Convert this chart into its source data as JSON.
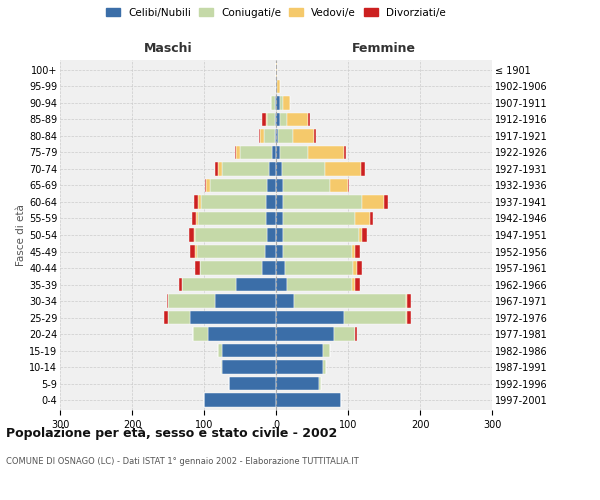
{
  "age_groups": [
    "0-4",
    "5-9",
    "10-14",
    "15-19",
    "20-24",
    "25-29",
    "30-34",
    "35-39",
    "40-44",
    "45-49",
    "50-54",
    "55-59",
    "60-64",
    "65-69",
    "70-74",
    "75-79",
    "80-84",
    "85-89",
    "90-94",
    "95-99",
    "100+"
  ],
  "birth_years": [
    "1997-2001",
    "1992-1996",
    "1987-1991",
    "1982-1986",
    "1977-1981",
    "1972-1976",
    "1967-1971",
    "1962-1966",
    "1957-1961",
    "1952-1956",
    "1947-1951",
    "1942-1946",
    "1937-1941",
    "1932-1936",
    "1927-1931",
    "1922-1926",
    "1917-1921",
    "1912-1916",
    "1907-1911",
    "1902-1906",
    "≤ 1901"
  ],
  "maschi": {
    "celibi": [
      100,
      65,
      75,
      75,
      95,
      120,
      85,
      55,
      20,
      15,
      12,
      14,
      14,
      12,
      10,
      5,
      2,
      2,
      2,
      0,
      0
    ],
    "coniugati": [
      0,
      0,
      2,
      5,
      20,
      30,
      65,
      75,
      85,
      95,
      100,
      95,
      90,
      80,
      65,
      45,
      15,
      10,
      5,
      0,
      0
    ],
    "vedovi": [
      0,
      0,
      0,
      0,
      0,
      0,
      0,
      0,
      0,
      2,
      2,
      2,
      5,
      5,
      5,
      5,
      5,
      2,
      0,
      0,
      0
    ],
    "divorziati": [
      0,
      0,
      0,
      0,
      0,
      5,
      2,
      5,
      7,
      7,
      7,
      5,
      5,
      2,
      5,
      2,
      2,
      5,
      0,
      0,
      0
    ]
  },
  "femmine": {
    "nubili": [
      90,
      60,
      65,
      65,
      80,
      95,
      25,
      15,
      12,
      10,
      10,
      10,
      10,
      10,
      8,
      5,
      3,
      5,
      5,
      2,
      0
    ],
    "coniugate": [
      0,
      2,
      5,
      10,
      30,
      85,
      155,
      90,
      95,
      95,
      105,
      100,
      110,
      65,
      60,
      40,
      20,
      10,
      5,
      0,
      0
    ],
    "vedove": [
      0,
      0,
      0,
      0,
      0,
      2,
      2,
      5,
      5,
      5,
      5,
      20,
      30,
      25,
      50,
      50,
      30,
      30,
      10,
      3,
      1
    ],
    "divorziate": [
      0,
      0,
      0,
      0,
      2,
      5,
      5,
      7,
      7,
      7,
      7,
      5,
      5,
      2,
      5,
      2,
      2,
      2,
      0,
      0,
      0
    ]
  },
  "colors": {
    "celibi": "#3b6ea8",
    "coniugati": "#c5d9a8",
    "vedovi": "#f5c96b",
    "divorziati": "#cc2020"
  },
  "title": "Popolazione per età, sesso e stato civile - 2002",
  "subtitle": "COMUNE DI OSNAGO (LC) - Dati ISTAT 1° gennaio 2002 - Elaborazione TUTTITALIA.IT",
  "xlabel_left": "Maschi",
  "xlabel_right": "Femmine",
  "ylabel_left": "Fasce di età",
  "xlim": 300,
  "legend_labels": [
    "Celibi/Nubili",
    "Coniugati/e",
    "Vedovi/e",
    "Divorziati/e"
  ],
  "bg_color": "#f0f0f0",
  "grid_color": "#cccccc"
}
